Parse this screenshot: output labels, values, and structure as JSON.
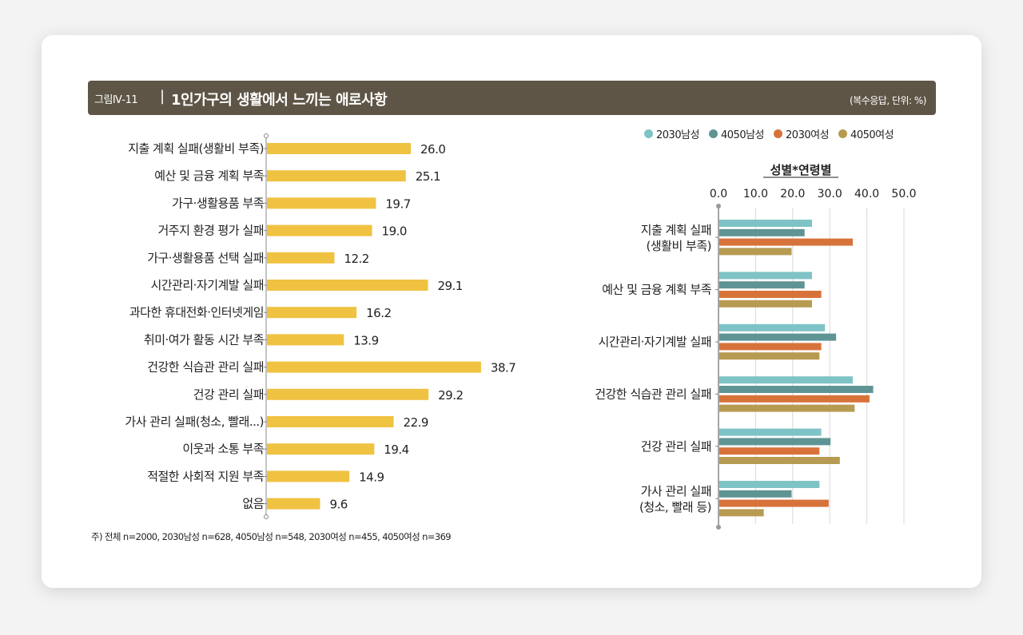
{
  "header": {
    "fig_label": "그림Ⅳ-11",
    "separator": "|",
    "title": "1인가구의 생활에서 느끼는 애로사항",
    "unit": "(복수응답, 단위: %)"
  },
  "note": "주) 전체 n=2000, 2030남성 n=628, 4050남성 n=548, 2030여성 n=455, 4050여성 n=369",
  "colors": {
    "total": "#f0c242",
    "m2030": "#7ec3c6",
    "m4050": "#5f9494",
    "f2030": "#d7733a",
    "f4050": "#b79b52"
  },
  "chart_data": [
    {
      "type": "bar",
      "orientation": "horizontal",
      "categories": [
        "지출 계획 실패(생활비 부족)",
        "예산 및 금융 계획 부족",
        "가구·생활용품 부족",
        "거주지 환경 평가 실패",
        "가구·생활용품 선택 실패",
        "시간관리·자기계발 실패",
        "과다한 휴대전화·인터넷게임",
        "취미·여가 활동 시간 부족",
        "건강한 식습관 관리 실패",
        "건강 관리 실패",
        "가사 관리 실패(청소, 빨래...)",
        "이웃과 소통 부족",
        "적절한 사회적 지원 부족",
        "없음"
      ],
      "values": [
        26.0,
        25.1,
        19.7,
        19.0,
        12.2,
        29.1,
        16.2,
        13.9,
        38.7,
        29.2,
        22.9,
        19.4,
        14.9,
        9.6
      ],
      "value_labels": [
        "26.0",
        "25.1",
        "19.7",
        "19.0",
        "12.2",
        "29.1",
        "16.2",
        "13.9",
        "38.7",
        "29.2",
        "22.9",
        "19.4",
        "14.9",
        "9.6"
      ],
      "xlim": [
        0,
        40
      ]
    },
    {
      "type": "bar",
      "orientation": "horizontal",
      "title": "성별*연령별",
      "xlim": [
        0,
        50
      ],
      "ticks": [
        "0.0",
        "10.0",
        "20.0",
        "30.0",
        "40.0",
        "50.0"
      ],
      "grid": true,
      "legend_position": "top-right",
      "categories": [
        [
          "지출 계획 실패",
          "(생활비 부족)"
        ],
        [
          "예산 및 금융 계획 부족"
        ],
        [
          "시간관리·자기계발 실패"
        ],
        [
          "건강한 식습관 관리 실패"
        ],
        [
          "건강 관리 실패"
        ],
        [
          "가사 관리 실패",
          "(청소, 빨래 등)"
        ]
      ],
      "series": [
        {
          "name": "2030남성",
          "values": [
            25.0,
            25.0,
            28.5,
            36.0,
            27.5,
            27.0
          ]
        },
        {
          "name": "4050남성",
          "values": [
            23.0,
            23.0,
            31.5,
            41.5,
            30.0,
            19.5
          ]
        },
        {
          "name": "2030여성",
          "values": [
            36.0,
            27.5,
            27.5,
            40.5,
            27.0,
            29.5
          ]
        },
        {
          "name": "4050여성",
          "values": [
            19.5,
            25.0,
            27.0,
            36.5,
            32.5,
            12.0
          ]
        }
      ]
    }
  ]
}
